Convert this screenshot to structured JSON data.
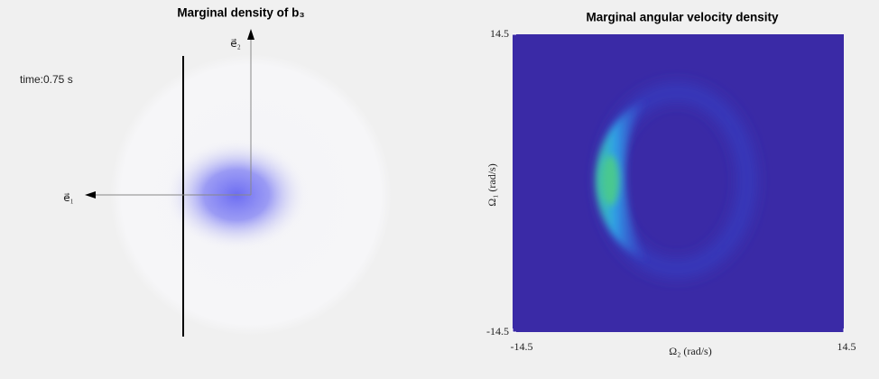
{
  "chart_data": [
    {
      "type": "density",
      "title": "Marginal density of b₃",
      "annotation": "time:0.75 s",
      "xlabel": "e⃗₁",
      "ylabel": "e⃗₂"
    },
    {
      "type": "heatmap",
      "title": "Marginal angular velocity density",
      "xlabel": "Ω₂ (rad/s)",
      "ylabel": "Ω₁ (rad/s)",
      "xlim": [
        -14.5,
        14.5
      ],
      "ylim": [
        -14.5,
        14.5
      ],
      "xticks": [
        -14.5,
        14.5
      ],
      "yticks": [
        -14.5,
        14.5
      ]
    }
  ]
}
